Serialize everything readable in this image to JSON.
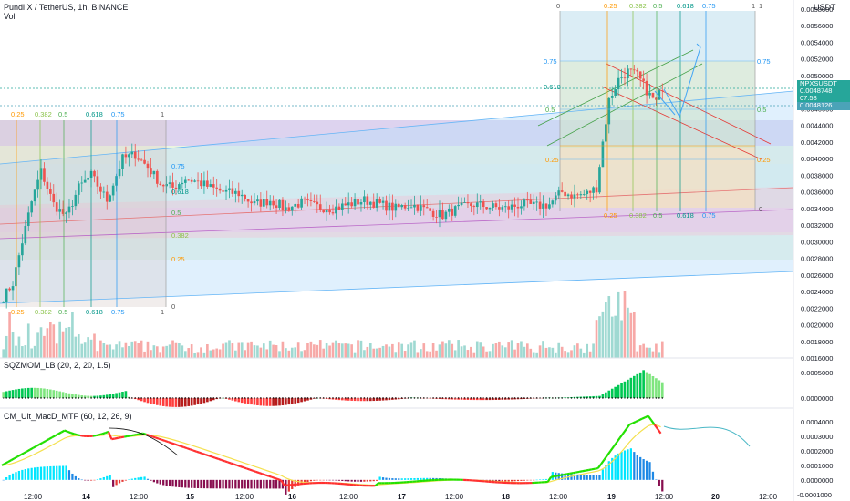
{
  "header": {
    "title": "Pundi X / TetherUS, 1h, BINANCE",
    "vol_label": "Vol",
    "currency": "USDT"
  },
  "price_tags": {
    "symbol": "NPXSUSDT",
    "last": "0.0048748",
    "countdown": "07:58",
    "level": "0.0048126",
    "last_color": "#26a69a",
    "level_color": "#4ba3b8"
  },
  "indicators": {
    "sqzmom": "SQZMOM_LB (20, 2, 20, 1.5)",
    "macd": "CM_Ult_MacD_MTF (60, 12, 26, 9)"
  },
  "colors": {
    "up": "#26a69a",
    "down": "#ef5350",
    "sqz_up_strong": "#00c853",
    "sqz_up_weak": "#7fe57f",
    "sqz_down_strong": "#ff3d3d",
    "sqz_down_weak": "#b71c1c",
    "macd_up": "#22e000",
    "macd_down": "#ff3030",
    "signal": "#f4e04d"
  },
  "chart_data": [
    {
      "type": "candlestick",
      "name": "price",
      "yaxis": {
        "min": 0.0016,
        "max": 0.0058,
        "ticks": [
          "0.0058000",
          "0.0056000",
          "0.0054000",
          "0.0052000",
          "0.0050000",
          "0.0048000",
          "0.0046000",
          "0.0044000",
          "0.0042000",
          "0.0040000",
          "0.0038000",
          "0.0036000",
          "0.0034000",
          "0.0032000",
          "0.0030000",
          "0.0028000",
          "0.0026000",
          "0.0024000",
          "0.0022000",
          "0.0020000",
          "0.0018000",
          "0.0016000"
        ]
      },
      "xaxis": {
        "ticks": [
          "12:00",
          "14",
          "12:00",
          "15",
          "12:00",
          "16",
          "12:00",
          "17",
          "12:00",
          "18",
          "12:00",
          "19",
          "12:00",
          "20",
          "12:00"
        ]
      },
      "keypoints": [
        [
          0,
          0.00233
        ],
        [
          3,
          0.0025
        ],
        [
          6,
          0.003
        ],
        [
          9,
          0.00348
        ],
        [
          12,
          0.00385
        ],
        [
          16,
          0.00345
        ],
        [
          20,
          0.0033
        ],
        [
          24,
          0.00365
        ],
        [
          28,
          0.0038
        ],
        [
          33,
          0.0035
        ],
        [
          38,
          0.004
        ],
        [
          42,
          0.00405
        ],
        [
          46,
          0.0039
        ],
        [
          50,
          0.0037
        ],
        [
          54,
          0.00365
        ],
        [
          58,
          0.00376
        ],
        [
          62,
          0.00372
        ],
        [
          66,
          0.00365
        ],
        [
          70,
          0.0036
        ],
        [
          75,
          0.00358
        ],
        [
          80,
          0.00345
        ],
        [
          85,
          0.0035
        ],
        [
          90,
          0.0034
        ],
        [
          95,
          0.00347
        ],
        [
          100,
          0.00342
        ],
        [
          105,
          0.0034
        ],
        [
          110,
          0.00345
        ],
        [
          115,
          0.0035
        ],
        [
          120,
          0.00345
        ],
        [
          125,
          0.0034
        ],
        [
          130,
          0.00345
        ],
        [
          135,
          0.00338
        ],
        [
          140,
          0.00332
        ],
        [
          145,
          0.0034
        ],
        [
          150,
          0.00345
        ],
        [
          155,
          0.00342
        ],
        [
          160,
          0.0034
        ],
        [
          165,
          0.00345
        ],
        [
          170,
          0.00343
        ],
        [
          174,
          0.00345
        ],
        [
          178,
          0.0036
        ],
        [
          182,
          0.00355
        ],
        [
          186,
          0.00358
        ],
        [
          189,
          0.00365
        ],
        [
          191,
          0.0042
        ],
        [
          193,
          0.0047
        ],
        [
          196,
          0.00495
        ],
        [
          199,
          0.00505
        ],
        [
          202,
          0.005
        ],
        [
          204,
          0.00488
        ],
        [
          206,
          0.00476
        ],
        [
          208,
          0.00468
        ],
        [
          210,
          0.00487
        ]
      ],
      "fib_labels": [
        "0",
        "0.25",
        "0.382",
        "0.5",
        "0.618",
        "0.75",
        "1"
      ]
    },
    {
      "type": "bar",
      "name": "Vol",
      "note": "volume histogram, unlabeled scale"
    },
    {
      "type": "bar",
      "name": "SQZMOM_LB (20, 2, 20, 1.5)",
      "yaxis": {
        "min": -0.0002,
        "max": 0.0007,
        "ticks": [
          "0.0005000",
          "0.0000000"
        ]
      }
    },
    {
      "type": "line",
      "name": "CM_Ult_MacD_MTF (60, 12, 26, 9)",
      "yaxis": {
        "min": -0.00012,
        "max": 0.00045,
        "ticks": [
          "0.0004000",
          "0.0003000",
          "0.0002000",
          "0.0001000",
          "0.0000000",
          "-0.0001000"
        ]
      }
    }
  ]
}
